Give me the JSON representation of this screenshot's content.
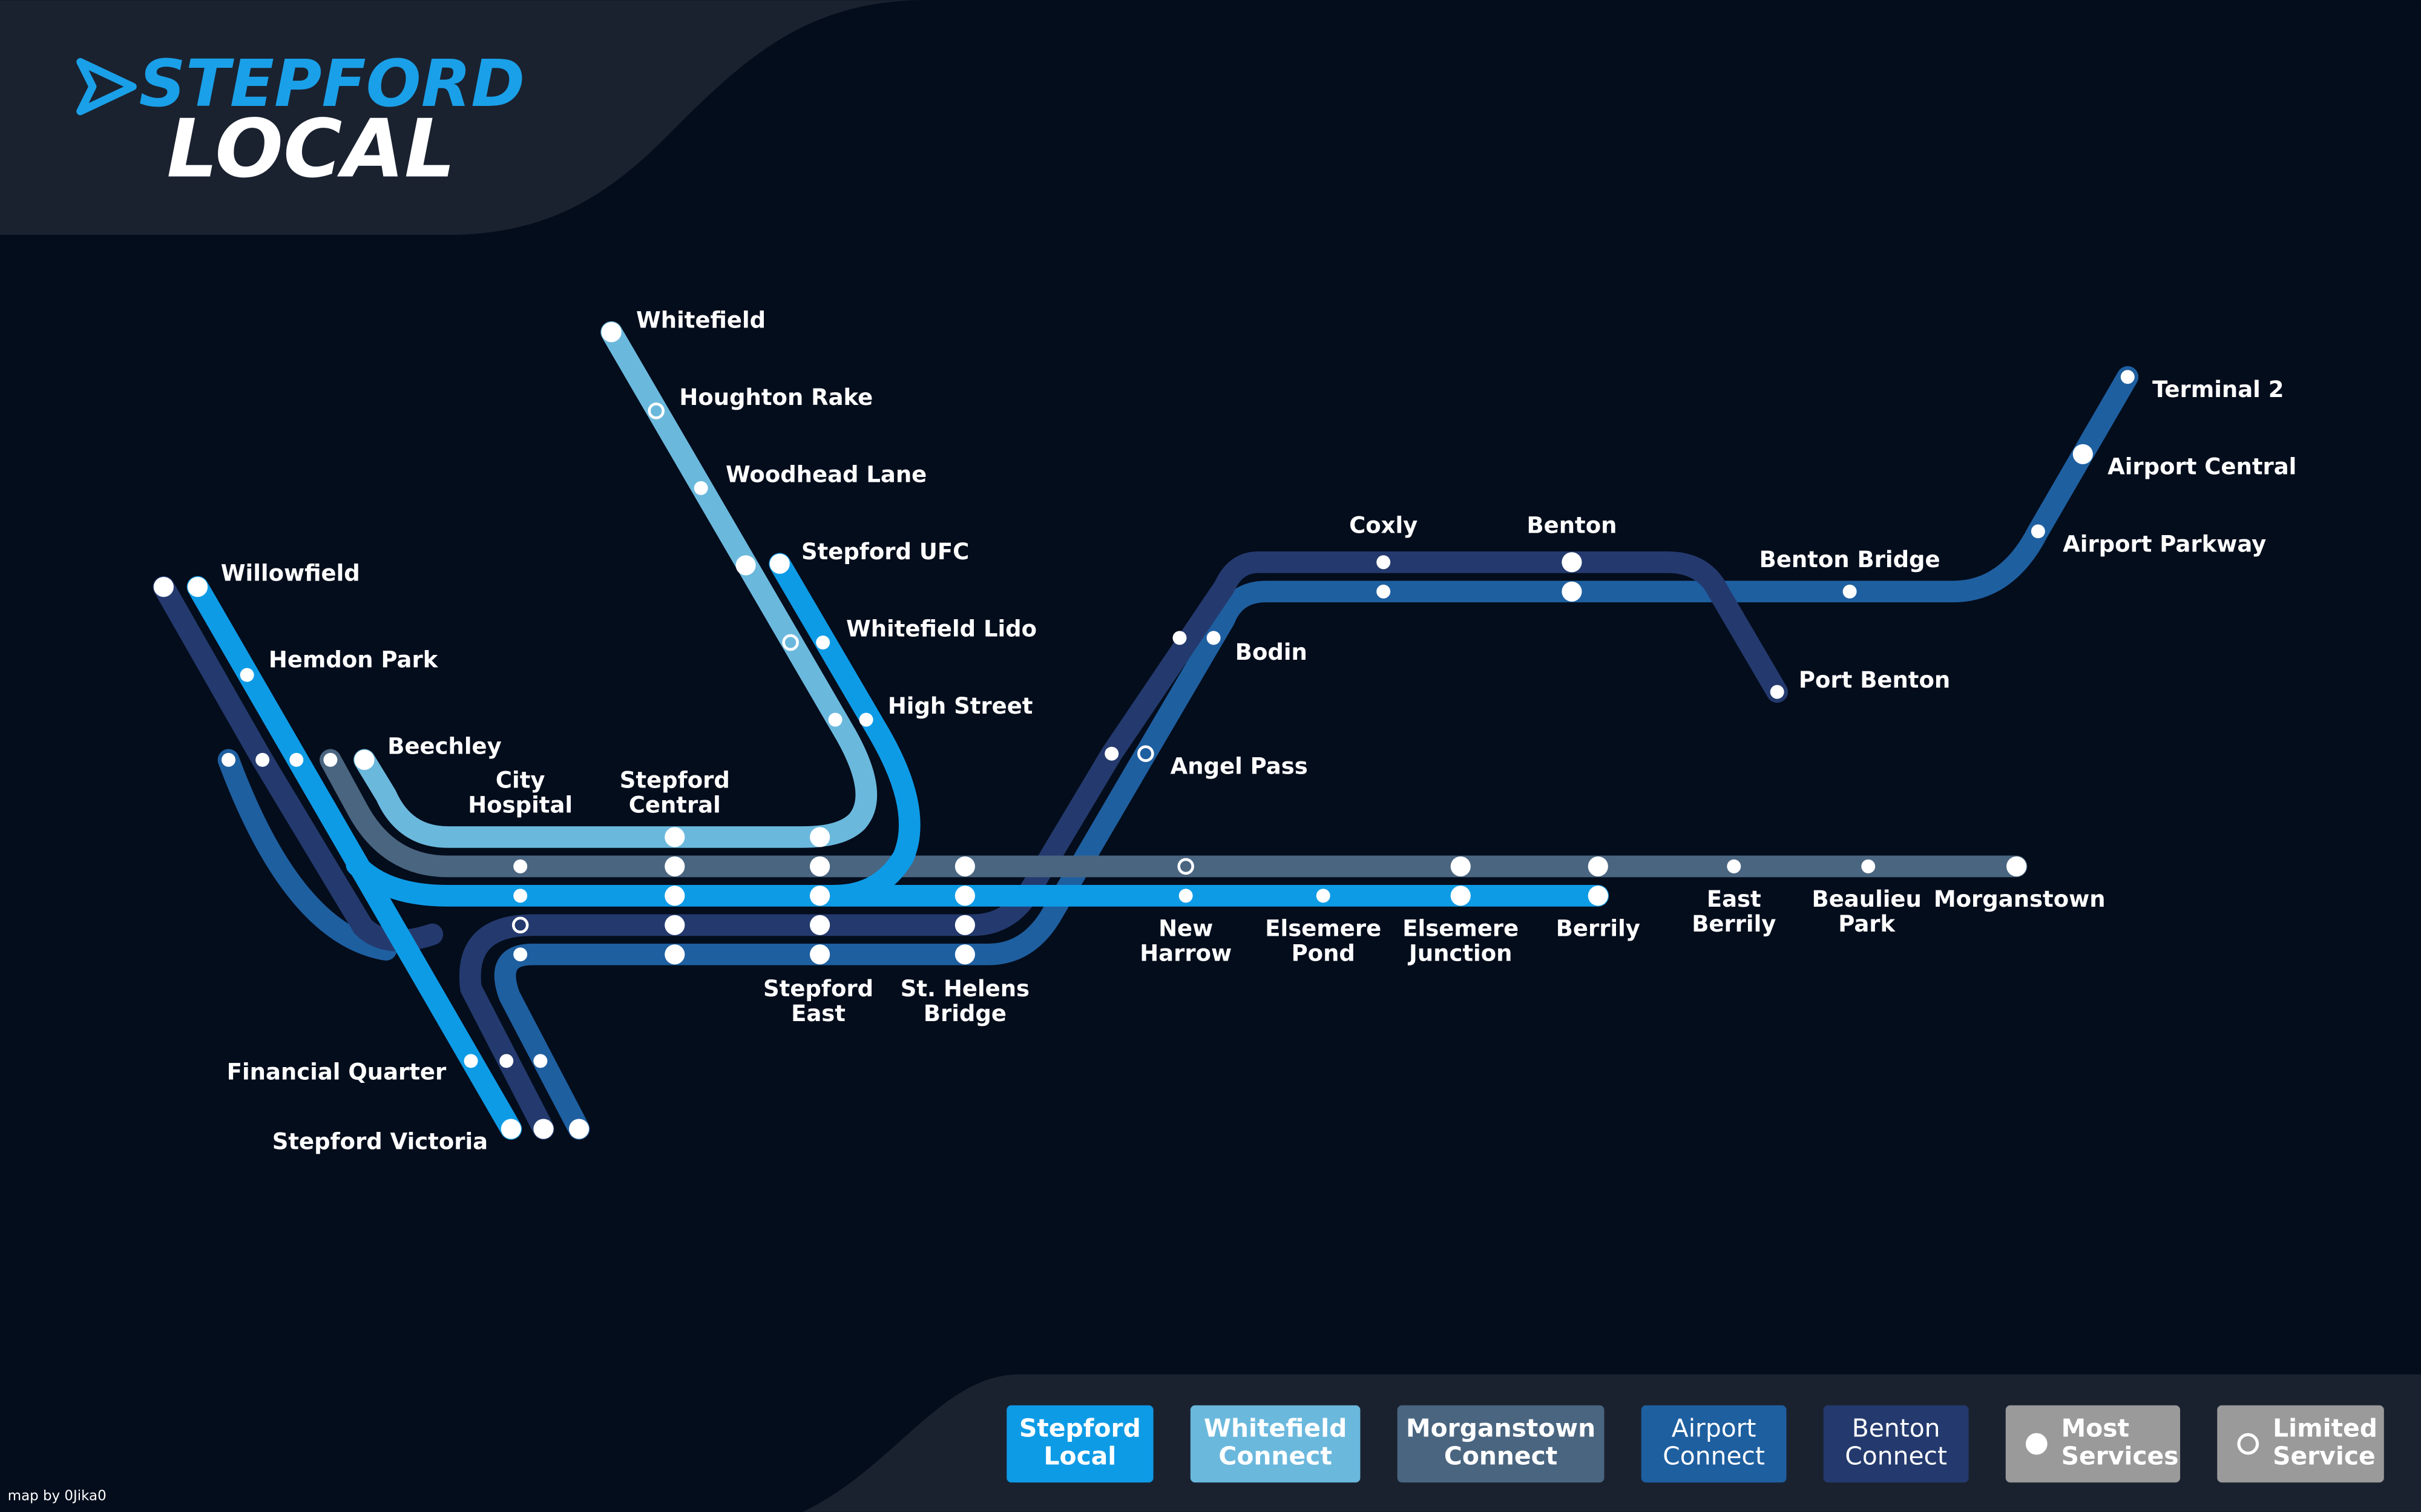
{
  "header": {
    "brand_top": "STEPFORD",
    "brand_bottom": "LOCAL"
  },
  "stations": [
    [
      "Whitefield"
    ],
    [
      "Houghton Rake"
    ],
    [
      "Woodhead Lane"
    ],
    [
      "Stepford UFC"
    ],
    [
      "Whitefield Lido"
    ],
    [
      "High Street"
    ],
    [
      "Willowfield"
    ],
    [
      "Hemdon Park"
    ],
    [
      "Beechley"
    ],
    [
      "City",
      "Hospital"
    ],
    [
      "Stepford",
      "Central"
    ],
    [
      "Stepford",
      "East"
    ],
    [
      "St. Helens",
      "Bridge"
    ],
    [
      "Financial Quarter"
    ],
    [
      "Stepford Victoria"
    ],
    [
      "Bodin"
    ],
    [
      "Angel Pass"
    ],
    [
      "Coxly"
    ],
    [
      "Benton"
    ],
    [
      "Benton Bridge"
    ],
    [
      "Port Benton"
    ],
    [
      "Terminal 2"
    ],
    [
      "Airport Central"
    ],
    [
      "Airport Parkway"
    ],
    [
      "New",
      "Harrow"
    ],
    [
      "Elsemere",
      "Pond"
    ],
    [
      "Elsemere",
      "Junction"
    ],
    [
      "Berrily"
    ],
    [
      "East",
      "Berrily"
    ],
    [
      "Beaulieu",
      "Park"
    ],
    [
      "Morganstown"
    ]
  ],
  "legend": [
    [
      "Stepford",
      "Local"
    ],
    [
      "Whitefield",
      "Connect"
    ],
    [
      "Morganstown",
      "Connect"
    ],
    [
      "Airport",
      "Connect"
    ],
    [
      "Benton",
      "Connect"
    ],
    [
      "Most",
      "Services"
    ],
    [
      "Limited",
      "Service"
    ]
  ],
  "credit": "map by 0Jika0"
}
